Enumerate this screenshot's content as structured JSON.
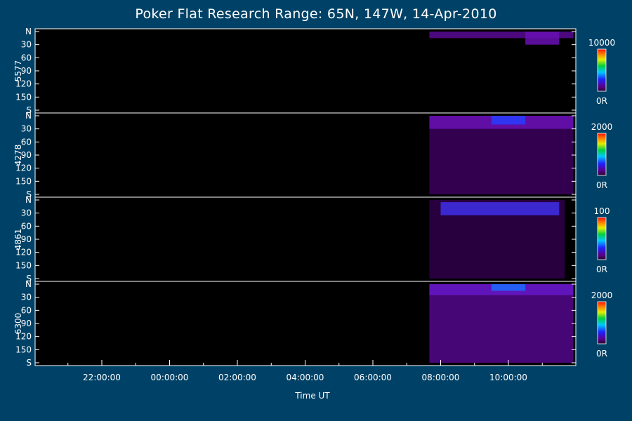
{
  "title": "Poker Flat Research Range: 65N, 147W, 14-Apr-2010",
  "chart_data": {
    "type": "heatmap",
    "title": "Poker Flat Research Range: 65N, 147W, 14-Apr-2010",
    "xlabel": "Time UT",
    "x_ticks": [
      "22:00:00",
      "00:00:00",
      "02:00:00",
      "04:00:00",
      "06:00:00",
      "08:00:00",
      "10:00:00"
    ],
    "y_ticks": [
      "N",
      "30",
      "60",
      "90",
      "120",
      "150",
      "S"
    ],
    "data_start": "07:40:00",
    "panels": [
      {
        "label": "5577",
        "colorbar": {
          "max_label": "10000",
          "min_label": "0R"
        },
        "bands": [
          {
            "start": "07:40:00",
            "end": "11:55:00",
            "from_deg": 0,
            "to_deg": 15,
            "level": 0.22
          },
          {
            "start": "10:30:00",
            "end": "11:30:00",
            "from_deg": 0,
            "to_deg": 30,
            "level": 0.28
          }
        ]
      },
      {
        "label": "4278",
        "colorbar": {
          "max_label": "2000",
          "min_label": "0R"
        },
        "bands": [
          {
            "start": "07:40:00",
            "end": "11:55:00",
            "from_deg": 0,
            "to_deg": 180,
            "level": 0.12
          },
          {
            "start": "07:40:00",
            "end": "11:55:00",
            "from_deg": 0,
            "to_deg": 30,
            "level": 0.28
          },
          {
            "start": "09:30:00",
            "end": "10:30:00",
            "from_deg": 0,
            "to_deg": 20,
            "level": 0.45
          }
        ]
      },
      {
        "label": "4861",
        "colorbar": {
          "max_label": "100",
          "min_label": "0R"
        },
        "bands": [
          {
            "start": "07:40:00",
            "end": "11:40:00",
            "from_deg": 0,
            "to_deg": 180,
            "level": 0.08
          },
          {
            "start": "08:00:00",
            "end": "11:30:00",
            "from_deg": 5,
            "to_deg": 35,
            "level": 0.4
          }
        ]
      },
      {
        "label": "6300",
        "colorbar": {
          "max_label": "2000",
          "min_label": "0R"
        },
        "bands": [
          {
            "start": "07:40:00",
            "end": "11:55:00",
            "from_deg": 0,
            "to_deg": 180,
            "level": 0.2
          },
          {
            "start": "07:40:00",
            "end": "11:55:00",
            "from_deg": 0,
            "to_deg": 25,
            "level": 0.32
          },
          {
            "start": "09:30:00",
            "end": "10:30:00",
            "from_deg": 0,
            "to_deg": 15,
            "level": 0.5
          }
        ]
      }
    ]
  }
}
